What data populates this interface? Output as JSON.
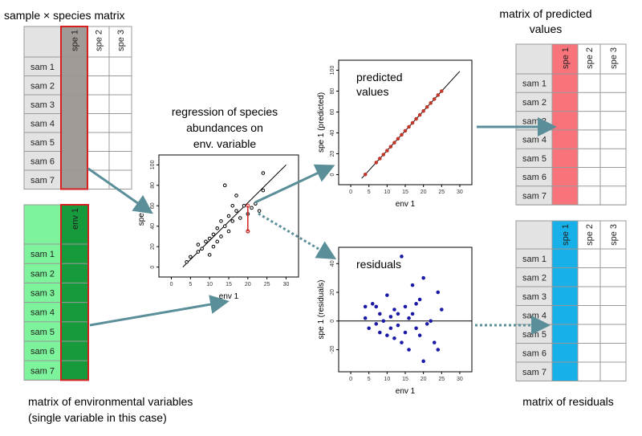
{
  "captions": {
    "top_left": "sample × species matrix",
    "bottom_left": [
      "matrix of environmental variables",
      "(single variable in this case)"
    ],
    "top_right": [
      "matrix of predicted",
      "values"
    ],
    "bottom_right": "matrix of residuals",
    "middle": [
      "regression of species",
      "abundances on",
      "env. variable"
    ]
  },
  "tables": [
    {
      "columns": [
        "spe 1",
        "spe 2",
        "spe 3"
      ],
      "rows": [
        "sam 1",
        "sam 2",
        "sam 3",
        "sam 4",
        "sam 5",
        "sam 6",
        "sam 7"
      ],
      "label_color": "#e3e3e3",
      "highlight_color": "#a09b97"
    },
    {
      "columns": [
        "env 1"
      ],
      "rows": [
        "sam 1",
        "sam 2",
        "sam 3",
        "sam 4",
        "sam 5",
        "sam 6",
        "sam 7"
      ],
      "label_color": "#7df49b",
      "highlight_color": "#179a3c"
    },
    {
      "columns": [
        "spe 1",
        "spe 2",
        "spe 3"
      ],
      "rows": [
        "sam 1",
        "sam 2",
        "sam 3",
        "sam 4",
        "sam 5",
        "sam 6",
        "sam 7"
      ],
      "label_color": "#e3e3e3",
      "highlight_color": "#f8737a"
    },
    {
      "columns": [
        "spe 1",
        "spe 2",
        "spe 3"
      ],
      "rows": [
        "sam 1",
        "sam 2",
        "sam 3",
        "sam 4",
        "sam 5",
        "sam 6",
        "sam 7"
      ],
      "label_color": "#e3e3e3",
      "highlight_color": "#17b0e8"
    }
  ],
  "plots": [
    {
      "type": "scatter",
      "label": [],
      "x_label": "env 1",
      "y_label": "spe 1",
      "xlim": [
        -2,
        32
      ],
      "ylim": [
        -5,
        105
      ],
      "xticks": [
        0,
        5,
        10,
        15,
        20,
        25,
        30
      ],
      "yticks": [
        0,
        20,
        40,
        60,
        80,
        100
      ],
      "color": "#000000",
      "filled": false,
      "x": [
        4,
        5,
        7,
        7,
        8,
        9,
        10,
        10,
        11,
        11,
        12,
        12,
        13,
        13,
        14,
        14,
        15,
        15,
        16,
        16,
        17,
        17,
        18,
        19,
        20,
        20,
        21,
        22,
        23,
        24,
        24
      ],
      "y": [
        5,
        10,
        15,
        22,
        18,
        25,
        12,
        28,
        20,
        32,
        25,
        38,
        30,
        45,
        40,
        80,
        35,
        50,
        60,
        45,
        70,
        55,
        48,
        60,
        35,
        52,
        58,
        62,
        55,
        92,
        75
      ],
      "fit_line": {
        "x": [
          3,
          30
        ],
        "y": [
          0,
          100
        ]
      },
      "residual": {
        "x": 20,
        "observed": 35,
        "predicted": 60
      }
    },
    {
      "type": "scatter",
      "label": [
        "predicted",
        "values"
      ],
      "x_label": "env 1",
      "y_label": "spe 1 (predicted)",
      "xlim": [
        -2,
        32
      ],
      "ylim": [
        -5,
        105
      ],
      "xticks": [
        0,
        5,
        10,
        15,
        20,
        25,
        30
      ],
      "yticks": [
        0,
        20,
        40,
        60,
        80,
        100
      ],
      "color": "#c0392b",
      "filled": true,
      "x": [
        4,
        7,
        8,
        9,
        10,
        11,
        12,
        13,
        14,
        15,
        16,
        17,
        18,
        19,
        20,
        21,
        22,
        23,
        24,
        25
      ],
      "y": [
        0.2,
        11.6,
        15.4,
        19.2,
        23,
        26.8,
        30.6,
        34.4,
        38.2,
        42,
        45.8,
        49.6,
        53.4,
        57.2,
        61,
        64.8,
        68.6,
        72.4,
        76.2,
        80
      ],
      "fit_line": {
        "x": [
          3,
          30
        ],
        "y": [
          -3.6,
          99
        ]
      }
    },
    {
      "type": "scatter",
      "label": [
        "residuals"
      ],
      "x_label": "env 1",
      "y_label": "spe 1 (residuals)",
      "xlim": [
        -2,
        32
      ],
      "ylim": [
        -32,
        48
      ],
      "xticks": [
        0,
        5,
        10,
        15,
        20,
        25,
        30
      ],
      "yticks": [
        -20,
        0,
        20,
        40
      ],
      "color": "#1a1aa6",
      "filled": true,
      "zero_line": 0,
      "x": [
        4,
        4,
        5,
        6,
        7,
        7,
        8,
        8,
        9,
        10,
        10,
        11,
        11,
        12,
        12,
        13,
        13,
        14,
        14,
        15,
        15,
        16,
        16,
        17,
        17,
        18,
        18,
        19,
        19,
        20,
        20,
        21,
        22,
        23,
        24,
        25,
        24
      ],
      "y": [
        10,
        2,
        -5,
        12,
        -2,
        10,
        -8,
        5,
        0,
        18,
        -10,
        3,
        -5,
        8,
        -12,
        -3,
        5,
        45,
        -15,
        10,
        -8,
        2,
        -20,
        25,
        5,
        -5,
        12,
        15,
        -10,
        -28,
        30,
        -2,
        0,
        -15,
        20,
        8,
        -20
      ]
    }
  ]
}
